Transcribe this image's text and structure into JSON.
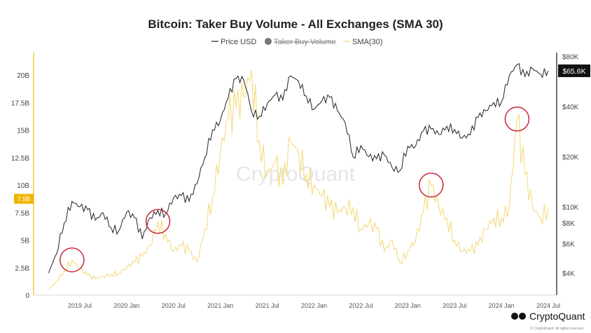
{
  "chart_data": {
    "type": "line",
    "title": "Bitcoin: Taker Buy Volume - All Exchanges (SMA 30)",
    "legend": {
      "placement": "top-center",
      "items": [
        {
          "label": "Price USD",
          "color": "#222222",
          "hidden": false
        },
        {
          "label": "Taker Buy Volume",
          "color": "#777777",
          "hidden": true
        },
        {
          "label": "SMA(30)",
          "color": "#f5dd8a",
          "hidden": false
        }
      ]
    },
    "x_ticks": [
      "2019 Jul",
      "2020 Jan",
      "2020 Jul",
      "2021 Jan",
      "2021 Jul",
      "2022 Jan",
      "2022 Jul",
      "2023 Jan",
      "2023 Jul",
      "2024 Jan",
      "2024 Jul"
    ],
    "y_left": {
      "ticks": [
        "0",
        "2.5B",
        "5B",
        "7.5B",
        "10B",
        "12.5B",
        "15B",
        "17.5B",
        "20B"
      ],
      "range": [
        0,
        22
      ],
      "unit": "B",
      "current_label": "7.9B",
      "current_value": 7.9
    },
    "y_right": {
      "scale": "log",
      "ticks": [
        "$4K",
        "$6K",
        "$8K",
        "$10K",
        "$20K",
        "$40K",
        "$80K"
      ],
      "tick_values": [
        4000,
        6000,
        8000,
        10000,
        20000,
        40000,
        80000
      ],
      "current_label": "$65.6K",
      "current_value": 65600
    },
    "x": [
      "2019-03",
      "2019-04",
      "2019-05",
      "2019-06",
      "2019-07",
      "2019-08",
      "2019-09",
      "2019-10",
      "2019-11",
      "2019-12",
      "2020-01",
      "2020-02",
      "2020-03",
      "2020-04",
      "2020-05",
      "2020-06",
      "2020-07",
      "2020-08",
      "2020-09",
      "2020-10",
      "2020-11",
      "2020-12",
      "2021-01",
      "2021-02",
      "2021-03",
      "2021-04",
      "2021-05",
      "2021-06",
      "2021-07",
      "2021-08",
      "2021-09",
      "2021-10",
      "2021-11",
      "2021-12",
      "2022-01",
      "2022-02",
      "2022-03",
      "2022-04",
      "2022-05",
      "2022-06",
      "2022-07",
      "2022-08",
      "2022-09",
      "2022-10",
      "2022-11",
      "2022-12",
      "2023-01",
      "2023-02",
      "2023-03",
      "2023-04",
      "2023-05",
      "2023-06",
      "2023-07",
      "2023-08",
      "2023-09",
      "2023-10",
      "2023-11",
      "2023-12",
      "2024-01",
      "2024-02",
      "2024-03",
      "2024-04",
      "2024-05",
      "2024-06",
      "2024-07"
    ],
    "series": [
      {
        "name": "Price USD",
        "axis": "right",
        "color": "#222222",
        "values": [
          4000,
          5200,
          8000,
          10800,
          10000,
          9600,
          8300,
          9200,
          7500,
          7200,
          9300,
          8600,
          6400,
          8600,
          9500,
          9100,
          11300,
          11700,
          10800,
          13800,
          19700,
          29000,
          33000,
          45000,
          58800,
          57700,
          37300,
          35000,
          41500,
          47100,
          43800,
          61300,
          57000,
          46300,
          38500,
          43200,
          45500,
          37700,
          31800,
          19900,
          23300,
          20000,
          19400,
          20500,
          17200,
          16500,
          23100,
          23100,
          28500,
          29300,
          27200,
          30500,
          29200,
          26000,
          27000,
          34500,
          37700,
          42300,
          42600,
          61200,
          71300,
          60600,
          67500,
          62700,
          65600
        ]
      },
      {
        "name": "SMA(30)",
        "axis": "left",
        "color": "#f5dd8a",
        "values": [
          0.5,
          1.2,
          2.2,
          3.2,
          2.4,
          1.8,
          1.5,
          1.7,
          1.9,
          2.0,
          2.5,
          3.0,
          3.5,
          4.5,
          6.7,
          5.5,
          4.0,
          4.5,
          4.0,
          3.0,
          6.0,
          9.0,
          13.0,
          16.0,
          17.0,
          18.0,
          20.5,
          14.0,
          11.0,
          12.0,
          10.0,
          14.0,
          13.0,
          11.0,
          10.0,
          9.0,
          8.0,
          7.5,
          8.0,
          8.0,
          6.0,
          6.5,
          6.0,
          4.0,
          5.0,
          3.0,
          4.0,
          5.0,
          7.5,
          10.0,
          8.0,
          7.0,
          5.0,
          4.0,
          4.0,
          4.5,
          6.0,
          7.0,
          7.0,
          8.0,
          16.0,
          11.0,
          8.0,
          7.0,
          7.9
        ]
      }
    ],
    "annotations": [
      {
        "shape": "circle",
        "color": "#c8283c",
        "x": "2019-06",
        "y": 3.2
      },
      {
        "shape": "circle",
        "color": "#c8283c",
        "x": "2020-05",
        "y": 6.7
      },
      {
        "shape": "circle",
        "color": "#c8283c",
        "x": "2023-04",
        "y": 10.0
      },
      {
        "shape": "circle",
        "color": "#c8283c",
        "x": "2024-03",
        "y": 16.0
      }
    ],
    "grid": false
  },
  "branding": {
    "watermark": "CryptoQuant",
    "logo": "CryptoQuant",
    "copyright": "© CryptoQuant. All rights reserved"
  }
}
